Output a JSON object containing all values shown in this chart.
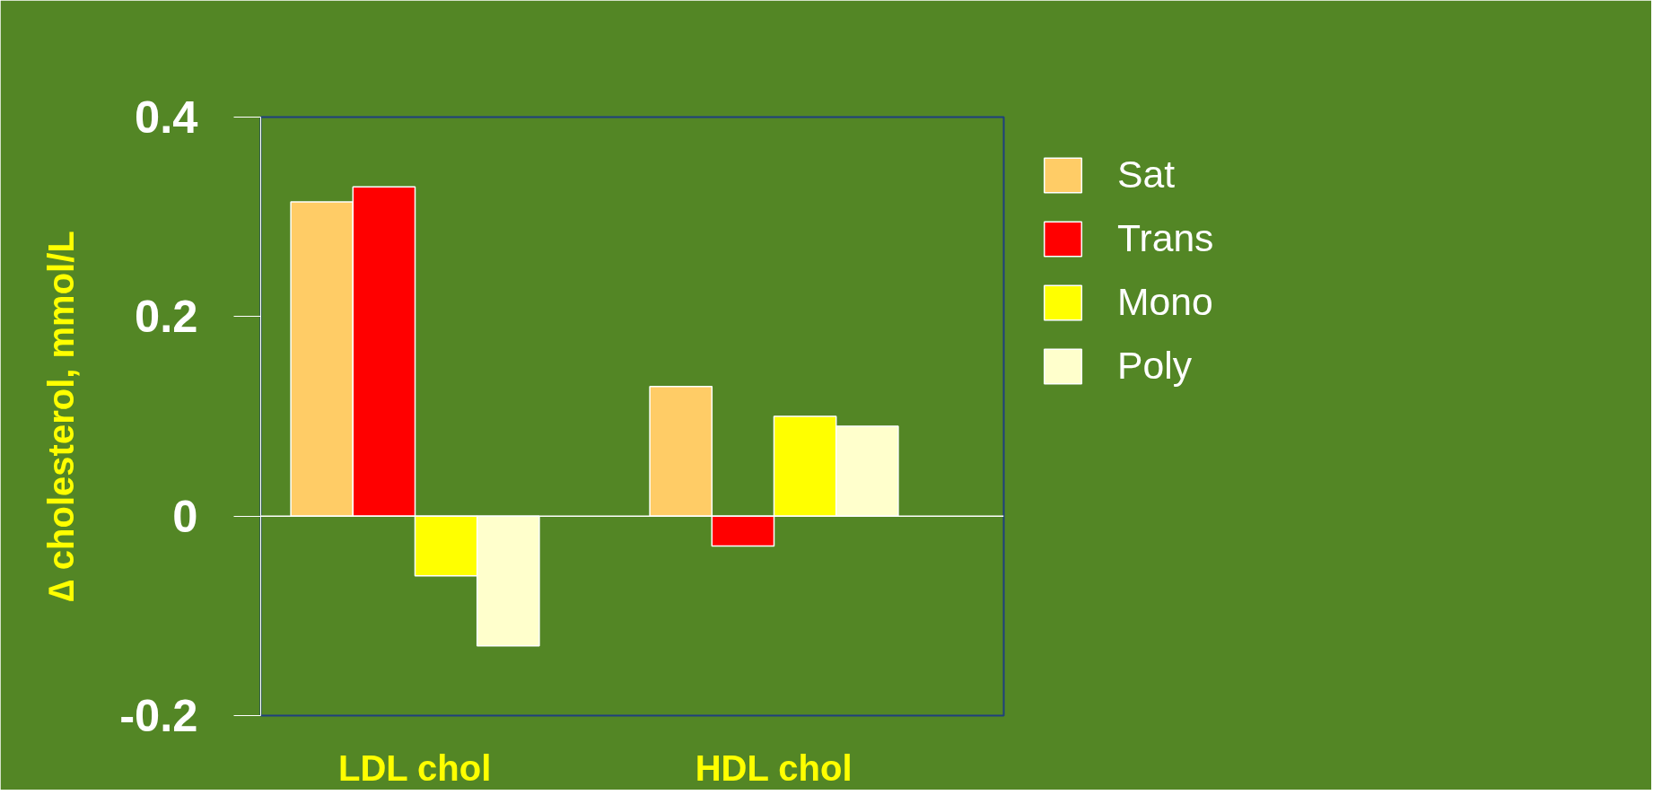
{
  "chart_data": {
    "type": "bar",
    "ylabel": "∆ cholesterol, mmol/L",
    "categories": [
      "LDL chol",
      "HDL chol"
    ],
    "series": [
      {
        "name": "Sat",
        "color": "#ffcc66",
        "values": [
          0.315,
          0.13
        ]
      },
      {
        "name": "Trans",
        "color": "#ff0000",
        "values": [
          0.33,
          -0.03
        ]
      },
      {
        "name": "Mono",
        "color": "#ffff00",
        "values": [
          -0.06,
          0.1
        ]
      },
      {
        "name": "Poly",
        "color": "#ffffcc",
        "values": [
          -0.13,
          0.09
        ]
      }
    ],
    "ylim": [
      -0.2,
      0.4
    ],
    "yticks": [
      -0.2,
      0,
      0.2,
      0.4
    ],
    "ref_lines": [
      {
        "axis": "y",
        "value": 0,
        "color": "#ffffff"
      }
    ],
    "grid": false,
    "legend": "right"
  }
}
